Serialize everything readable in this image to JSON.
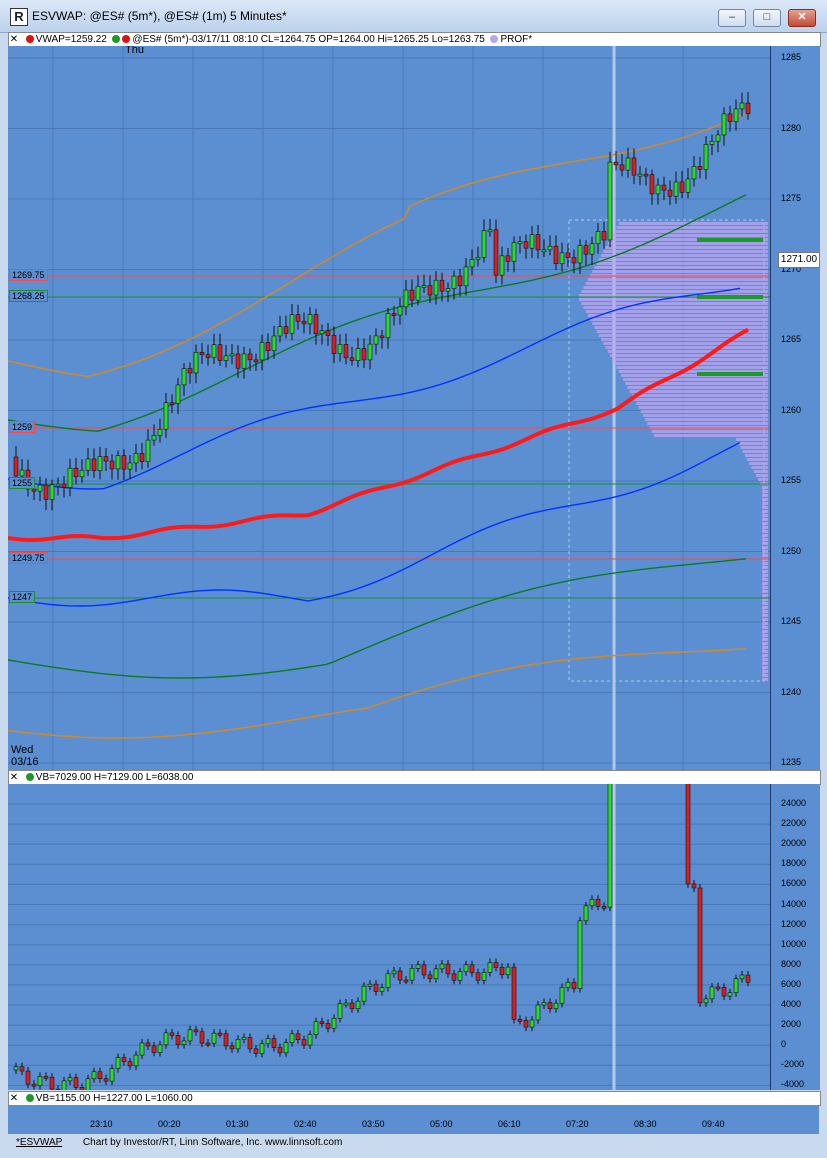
{
  "window": {
    "title": "ESVWAP: @ES# (5m*), @ES# (1m) 5 Minutes*",
    "minimize": "–",
    "restore": "□",
    "close": "✕"
  },
  "price_panel": {
    "header_items": [
      "VWAP=1259.22",
      "@ES# (5m*)-03/17/11 08:10 CL=1264.75 OP=1264.00 Hi=1265.25 Lo=1263.75",
      "PROF*"
    ],
    "day_label": "Thu",
    "date_label_top": "Wed",
    "date_label_bottom": "03/16",
    "last_price": "1271.00",
    "price_ticks": [
      "1285",
      "1280",
      "1275",
      "1270",
      "1265",
      "1260",
      "1255",
      "1250",
      "1245",
      "1240",
      "1235"
    ],
    "level_tags": [
      {
        "text": "1269.75",
        "color": "#ff4545"
      },
      {
        "text": "1268.25",
        "color": "#1e8f2d"
      },
      {
        "text": "1259",
        "color": "#ff4545"
      },
      {
        "text": "1255",
        "color": "#1e8f2d"
      },
      {
        "text": "1249.75",
        "color": "#ff4545"
      },
      {
        "text": "1247",
        "color": "#1e8f2d"
      }
    ]
  },
  "volume_panel": {
    "header": "VB=7029.00 H=7129.00 L=6038.00",
    "ticks": [
      "24000",
      "22000",
      "20000",
      "18000",
      "16000",
      "14000",
      "12000",
      "10000",
      "8000",
      "6000",
      "4000",
      "2000",
      "0",
      "-2000",
      "-4000"
    ]
  },
  "third_panel": {
    "header": "VB=1155.00 H=1227.00 L=1060.00"
  },
  "time_axis": [
    "23:10",
    "00:20",
    "01:30",
    "02:40",
    "03:50",
    "05:00",
    "06:10",
    "07:20",
    "08:30",
    "09:40"
  ],
  "footer": {
    "link": "*ESVWAP",
    "credit": "Chart by Investor/RT, Linn Software, Inc. www.linnsoft.com"
  },
  "colors": {
    "chart_bg": "#5b8fd2",
    "grid": "#4b78b4",
    "vwap": "#ff1a1a",
    "band1": "#0033ff",
    "band2": "#0b7a20",
    "band3": "#d08a2a"
  }
}
